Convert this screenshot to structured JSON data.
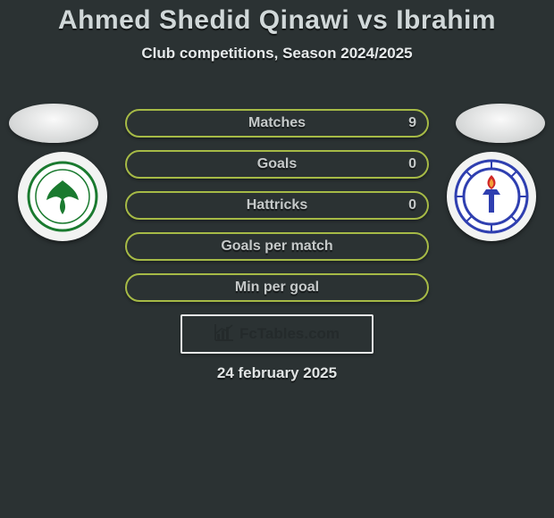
{
  "title": {
    "text": "Ahmed Shedid Qinawi vs Ibrahim",
    "color": "#d1d8d9",
    "fontsize": 30
  },
  "subtitle": {
    "text": "Club competitions, Season 2024/2025",
    "color": "#e6e9ea",
    "fontsize": 17
  },
  "stats": {
    "row_border_color": "#a6ba46",
    "row_bg_color": "#2b3233",
    "label_color": "#c5c9c9",
    "label_fontsize": 16,
    "value_color": "#c5c9c9",
    "value_fontsize": 16,
    "rows": [
      {
        "label": "Matches",
        "right": "9"
      },
      {
        "label": "Goals",
        "right": "0"
      },
      {
        "label": "Hattricks",
        "right": "0"
      },
      {
        "label": "Goals per match",
        "right": ""
      },
      {
        "label": "Min per goal",
        "right": ""
      }
    ]
  },
  "brand": {
    "text": "FcTables.com"
  },
  "date": {
    "text": "24 february 2025",
    "color": "#e1e4e4",
    "fontsize": 17
  },
  "crests": {
    "left": {
      "name": "al-masry-crest",
      "ring": "#1a7a2f",
      "accent": "#1a7a2f"
    },
    "right": {
      "name": "smouha-crest",
      "ring": "#2f3fb0",
      "accent": "#d02828"
    }
  },
  "background_color": "#2b3233"
}
